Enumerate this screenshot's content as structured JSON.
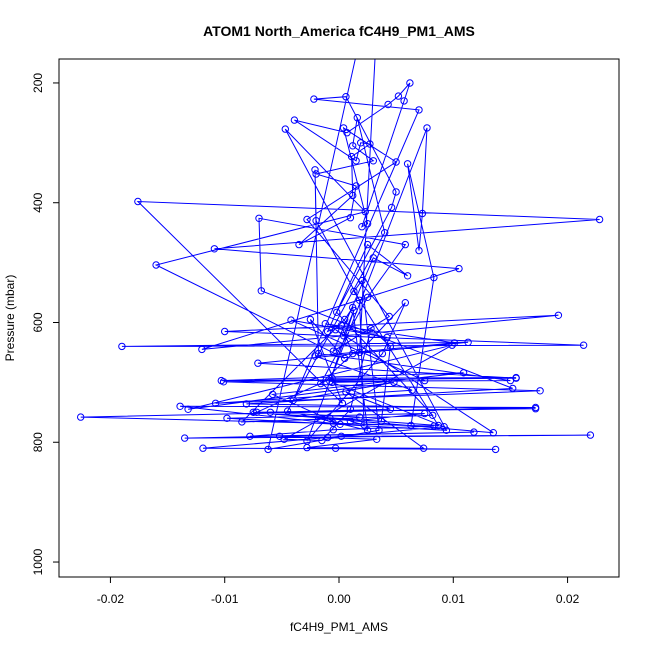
{
  "chart_data": {
    "type": "line",
    "title": "ATOM1 North_America fC4H9_PM1_AMS",
    "xlabel": "fC4H9_PM1_AMS",
    "ylabel": "Pressure (mbar)",
    "xlim": [
      -0.0245,
      0.0245
    ],
    "ylim": [
      1025,
      160
    ],
    "y_reversed": true,
    "grid": false,
    "x_ticks": [
      -0.02,
      -0.01,
      0.0,
      0.01,
      0.02
    ],
    "x_tick_labels": [
      "-0.02",
      "-0.01",
      "0.00",
      "0.01",
      "0.02"
    ],
    "y_ticks": [
      200,
      400,
      600,
      800,
      1000
    ],
    "y_tick_labels": [
      "200",
      "400",
      "600",
      "800",
      "1000"
    ],
    "series": [
      {
        "color": "#0000ff",
        "marker": "open-circle",
        "points": [
          [
            -0.0003,
            810
          ],
          [
            0.0137,
            812
          ],
          [
            -0.0119,
            810
          ],
          [
            0.0002,
            790
          ],
          [
            0.022,
            788
          ],
          [
            -0.0135,
            793
          ],
          [
            0.0118,
            783
          ],
          [
            -0.0078,
            790
          ],
          [
            -0.0005,
            779
          ],
          [
            0.0083,
            773
          ],
          [
            -0.0226,
            758
          ],
          [
            0.0172,
            742
          ],
          [
            -0.0139,
            740
          ],
          [
            0.0001,
            770
          ],
          [
            -0.0058,
            720
          ],
          [
            0.0109,
            684
          ],
          [
            -0.0103,
            697
          ],
          [
            0.0155,
            693
          ],
          [
            -0.0071,
            668
          ],
          [
            0.0113,
            633
          ],
          [
            -0.019,
            640
          ],
          [
            0.0214,
            638
          ],
          [
            -0.01,
            615
          ],
          [
            0.0192,
            588
          ],
          [
            -0.012,
            645
          ],
          [
            0.0105,
            510
          ],
          [
            -0.0109,
            477
          ],
          [
            0.0228,
            428
          ],
          [
            -0.0176,
            398
          ],
          [
            0.0003,
            735
          ],
          [
            -0.0025,
            595
          ],
          [
            0.0005,
            660
          ],
          [
            -0.016,
            504
          ],
          [
            0.0023,
            415
          ],
          [
            -0.0047,
            277
          ],
          [
            0.0094,
            780
          ],
          [
            -0.0098,
            760
          ],
          [
            0.0075,
            752
          ],
          [
            0.001,
            765
          ],
          [
            0.0022,
            771
          ],
          [
            0.0018,
            563
          ],
          [
            -0.002,
            430
          ],
          [
            -0.0021,
            345
          ],
          [
            -0.0018,
            652
          ],
          [
            0.015,
            697
          ],
          [
            -0.0008,
            698
          ],
          [
            0.0013,
            580
          ],
          [
            0.0004,
            622
          ],
          [
            -0.0003,
            612
          ],
          [
            0.0135,
            784
          ],
          [
            -0.0075,
            750
          ],
          [
            0.0087,
            772
          ],
          [
            0.0013,
            548
          ],
          [
            0.002,
            530
          ],
          [
            0.0035,
            780
          ],
          [
            -0.0062,
            812
          ],
          [
            0.0015,
            154
          ],
          [
            0.0033,
            105
          ],
          [
            0.0018,
            650
          ],
          [
            0.0058,
            567
          ],
          [
            0.0038,
            652
          ],
          [
            -0.0028,
            798
          ],
          [
            0.0077,
            275
          ],
          [
            0.0073,
            418
          ],
          [
            0.007,
            480
          ],
          [
            0.006,
            335
          ],
          [
            0.0083,
            525
          ],
          [
            0.0063,
            772
          ],
          [
            -0.0005,
            768
          ],
          [
            -0.0008,
            760
          ],
          [
            0.0037,
            765
          ],
          [
            0.0045,
            640
          ],
          [
            0.0028,
            610
          ],
          [
            0.001,
            745
          ],
          [
            -0.0015,
            797
          ],
          [
            -0.0048,
            795
          ],
          [
            0.0099,
            638
          ],
          [
            -0.0132,
            745
          ],
          [
            0.0048,
            700
          ],
          [
            -0.004,
            730
          ],
          [
            0.007,
            245
          ],
          [
            -0.0022,
            227
          ],
          [
            0.0006,
            223
          ],
          [
            0.005,
            382
          ],
          [
            0.0046,
            408
          ],
          [
            -0.0002,
            583
          ],
          [
            0.0082,
            755
          ],
          [
            -0.0085,
            766
          ],
          [
            0.0005,
            595
          ],
          [
            0.0012,
            575
          ],
          [
            0.0025,
            780
          ],
          [
            -0.0045,
            748
          ],
          [
            0.004,
            450
          ],
          [
            0.0016,
            258
          ],
          [
            0.0012,
            305
          ],
          [
            0.003,
            330
          ],
          [
            -0.002,
            352
          ],
          [
            0.0015,
            372
          ],
          [
            0.001,
            425
          ],
          [
            -0.0035,
            470
          ],
          [
            0.0012,
            388
          ],
          [
            0.0011,
            323
          ],
          [
            0.0027,
            302
          ],
          [
            0.0019,
            300
          ],
          [
            0.0015,
            330
          ],
          [
            -0.0039,
            262
          ],
          [
            0.0007,
            283
          ],
          [
            0.0043,
            236
          ],
          [
            0.0052,
            222
          ],
          [
            0.0062,
            200
          ],
          [
            0.0057,
            230
          ],
          [
            0.002,
            440
          ],
          [
            0.0025,
            435
          ],
          [
            0.0004,
            275
          ],
          [
            0.005,
            332
          ],
          [
            -0.0028,
            428
          ],
          [
            0.0044,
            590
          ],
          [
            -0.0005,
            648
          ],
          [
            0.003,
            492
          ],
          [
            0.006,
            522
          ],
          [
            0.0025,
            470
          ],
          [
            -0.001,
            615
          ],
          [
            0.0002,
            605
          ],
          [
            0.0012,
            652
          ],
          [
            -0.0016,
            702
          ],
          [
            0.0025,
            558
          ],
          [
            0.0058,
            470
          ],
          [
            -0.007,
            426
          ],
          [
            -0.0068,
            547
          ],
          [
            0.0152,
            710
          ],
          [
            -0.0081,
            736
          ],
          [
            0.0172,
            744
          ],
          [
            -0.0072,
            750
          ],
          [
            -0.0006,
            693
          ],
          [
            0.0155,
            692
          ],
          [
            -0.0101,
            699
          ],
          [
            0.0176,
            714
          ],
          [
            -0.0108,
            735
          ],
          [
            0.0064,
            713
          ],
          [
            -0.0021,
            656
          ],
          [
            0.0101,
            634
          ],
          [
            -0.0012,
            602
          ],
          [
            0.0042,
            625
          ],
          [
            -0.0042,
            596
          ],
          [
            0.0075,
            697
          ],
          [
            -0.0006,
            700
          ],
          [
            0.0092,
            774
          ],
          [
            -0.001,
            792
          ],
          [
            -0.0052,
            790
          ],
          [
            0.0033,
            795
          ],
          [
            -0.0028,
            809
          ],
          [
            0.0074,
            810
          ],
          [
            0.0006,
            716
          ],
          [
            0.0045,
            745
          ],
          [
            -0.006,
            750
          ],
          [
            0.0018,
            758
          ]
        ]
      }
    ]
  }
}
